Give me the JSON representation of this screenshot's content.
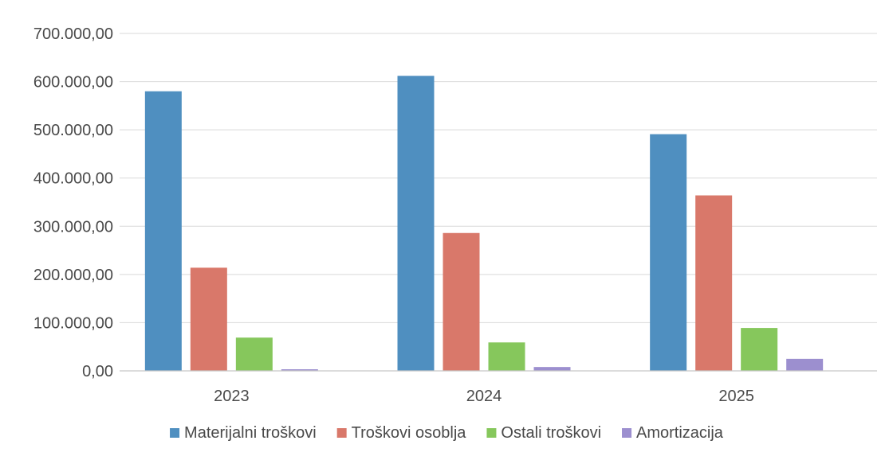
{
  "chart_data": {
    "type": "bar",
    "title": "",
    "xlabel": "",
    "ylabel": "",
    "categories": [
      "2023",
      "2024",
      "2025"
    ],
    "ylim": [
      0,
      700000
    ],
    "yticks": [
      0,
      100000,
      200000,
      300000,
      400000,
      500000,
      600000,
      700000
    ],
    "ytick_labels": [
      "0,00",
      "100.000,00",
      "200.000,00",
      "300.000,00",
      "400.000,00",
      "500.000,00",
      "600.000,00",
      "700.000,00"
    ],
    "grid": true,
    "legend_position": "bottom",
    "series": [
      {
        "name": "Materijalni troškovi",
        "color": "#4f8fc0",
        "values": [
          580000,
          612000,
          491000
        ]
      },
      {
        "name": "Troškovi osoblja",
        "color": "#d9786a",
        "values": [
          214000,
          286000,
          364000
        ]
      },
      {
        "name": "Ostali troškovi",
        "color": "#86c75c",
        "values": [
          69000,
          59000,
          89000
        ]
      },
      {
        "name": "Amortizacija",
        "color": "#9c8fcf",
        "values": [
          3000,
          8000,
          25000
        ]
      }
    ]
  }
}
